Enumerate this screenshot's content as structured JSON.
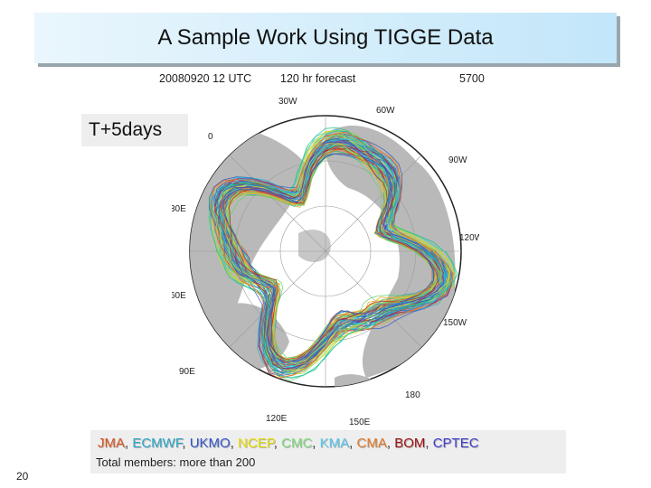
{
  "slide": {
    "title": "A Sample Work Using TIGGE Data",
    "page_number": "20"
  },
  "map": {
    "date_time": "20080920 12 UTC",
    "forecast": "120 hr forecast",
    "contour_value": "5700",
    "lead_label": "T+5days",
    "longitude_labels": [
      "30W",
      "60W",
      "90W",
      "120W",
      "150W",
      "180",
      "150E",
      "120E",
      "90E",
      "60E",
      "30E",
      "0"
    ]
  },
  "legend": {
    "centers": [
      {
        "name": "JMA",
        "color": "#d9531e"
      },
      {
        "name": "ECMWF",
        "color": "#2aa7c9"
      },
      {
        "name": "UKMO",
        "color": "#3355cc"
      },
      {
        "name": "NCEP",
        "color": "#e8e000"
      },
      {
        "name": "CMC",
        "color": "#7ddc7d"
      },
      {
        "name": "KMA",
        "color": "#58c8ef"
      },
      {
        "name": "CMA",
        "color": "#e07b2a"
      },
      {
        "name": "BOM",
        "color": "#a01010"
      },
      {
        "name": "CPTEC",
        "color": "#4040d0"
      }
    ],
    "total": "Total members: more than 200"
  },
  "colors": {
    "ocean": "#ffffff",
    "land": "#b9b9b9",
    "title_bg": "#d2edfb"
  }
}
